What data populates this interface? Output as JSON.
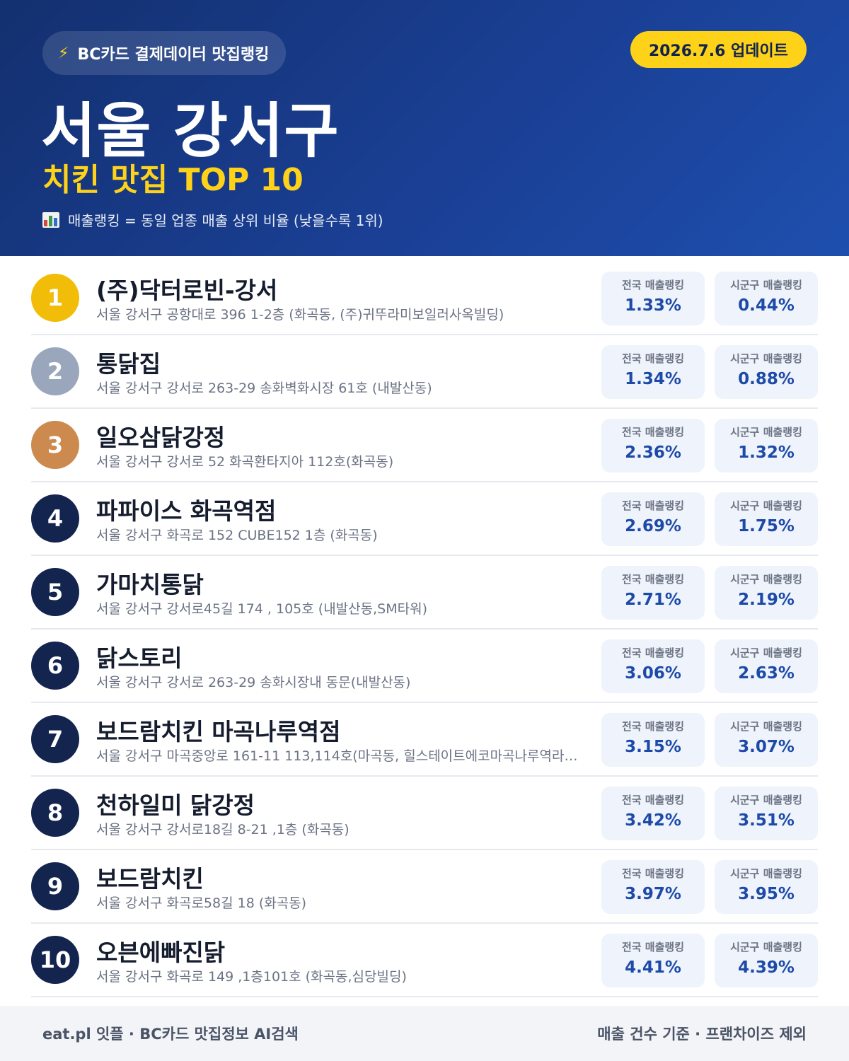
{
  "header": {
    "source_badge": "BC카드 결제데이터 맛집랭킹",
    "source_icon": "lightning-bolt-icon",
    "update_badge": "2026.7.6 업데이트",
    "title": "서울 강서구",
    "subtitle": "치킨 맛집 TOP 10",
    "note_icon": "bar-chart-icon",
    "note": "매출랭킹 = 동일 업종 매출 상위 비율 (낮을수록 1위)",
    "colors": {
      "accent": "#ffd21a",
      "background": "#1a3f94"
    }
  },
  "labels": {
    "national": "전국 매출랭킹",
    "local": "시군구 매출랭킹"
  },
  "restaurants": [
    {
      "rank": "1",
      "name": "(주)닥터로빈-강서",
      "address": "서울 강서구 공항대로 396 1-2층 (화곡동, (주)귀뚜라미보일러사옥빌딩)",
      "national": "1.33%",
      "local": "0.44%"
    },
    {
      "rank": "2",
      "name": "통닭집",
      "address": "서울 강서구 강서로 263-29 송화벽화시장 61호 (내발산동)",
      "national": "1.34%",
      "local": "0.88%"
    },
    {
      "rank": "3",
      "name": "일오삼닭강정",
      "address": "서울 강서구 강서로 52 화곡환타지아 112호(화곡동)",
      "national": "2.36%",
      "local": "1.32%"
    },
    {
      "rank": "4",
      "name": "파파이스 화곡역점",
      "address": "서울 강서구 화곡로 152 CUBE152 1층 (화곡동)",
      "national": "2.69%",
      "local": "1.75%"
    },
    {
      "rank": "5",
      "name": "가마치통닭",
      "address": "서울 강서구 강서로45길 174 , 105호 (내발산동,SM타워)",
      "national": "2.71%",
      "local": "2.19%"
    },
    {
      "rank": "6",
      "name": "닭스토리",
      "address": "서울 강서구 강서로 263-29 송화시장내 동문(내발산동)",
      "national": "3.06%",
      "local": "2.63%"
    },
    {
      "rank": "7",
      "name": "보드람치킨 마곡나루역점",
      "address": "서울 강서구 마곡중앙로 161-11 113,114호(마곡동, 힐스테이트에코마곡나루역라…",
      "national": "3.15%",
      "local": "3.07%"
    },
    {
      "rank": "8",
      "name": "천하일미 닭강정",
      "address": "서울 강서구 강서로18길 8-21 ,1층 (화곡동)",
      "national": "3.42%",
      "local": "3.51%"
    },
    {
      "rank": "9",
      "name": "보드람치킨",
      "address": "서울 강서구 화곡로58길 18 (화곡동)",
      "national": "3.97%",
      "local": "3.95%"
    },
    {
      "rank": "10",
      "name": "오븐에빠진닭",
      "address": "서울 강서구 화곡로 149 ,1층101호 (화곡동,심당빌딩)",
      "national": "4.41%",
      "local": "4.39%"
    }
  ],
  "footer": {
    "left": "eat.pl 잇플 · BC카드 맛집정보 AI검색",
    "right": "매출 건수 기준 · 프랜차이즈 제외"
  }
}
